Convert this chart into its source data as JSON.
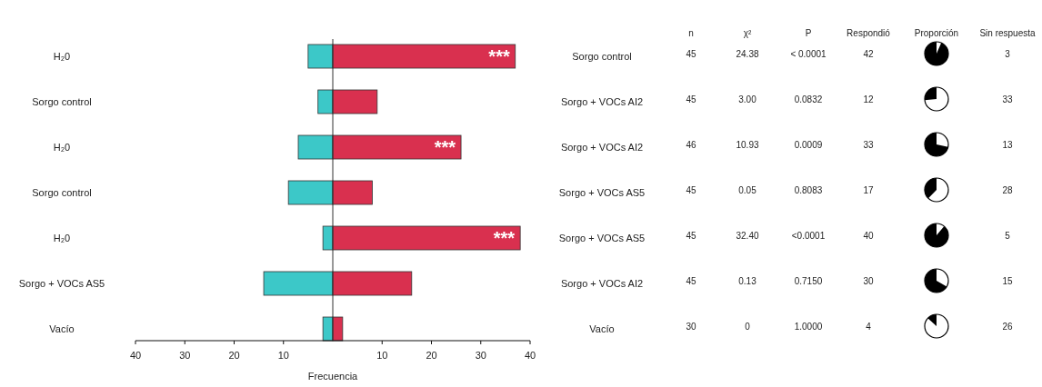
{
  "chart_data": [
    {
      "type": "bar",
      "orientation": "horizontal",
      "stacked": true,
      "xlabel": "Frecuencia",
      "categories": [
        "H₂0",
        "Sorgo control",
        "H₂0",
        "Sorgo control",
        "H₂0",
        "Sorgo + VOCs AS5",
        "Vacío"
      ],
      "series": [
        {
          "color": "#3cc8c8",
          "values": [
            -5,
            -3,
            -7,
            -9,
            -2,
            -14,
            -2
          ]
        },
        {
          "color": "#d9304f",
          "values": [
            37,
            9,
            26,
            8,
            38,
            16,
            2
          ],
          "value_labels": [
            "***",
            null,
            "***",
            null,
            "***",
            null,
            null
          ]
        }
      ],
      "xlim": [
        -40,
        40
      ],
      "xticks": [
        {
          "value": -40,
          "label": "40"
        },
        {
          "value": -30,
          "label": "30"
        },
        {
          "value": -20,
          "label": "20"
        },
        {
          "value": -10,
          "label": "10"
        },
        10,
        20,
        30,
        40
      ]
    },
    {
      "type": "other",
      "categories": [
        null,
        "n",
        "χ²",
        "P",
        "Respondió",
        "Proporción",
        "Sin respuesta"
      ],
      "y_categories": [
        "Sorgo control",
        "Sorgo + VOCs AI2",
        "Sorgo + VOCs AI2",
        "Sorgo + VOCs AS5",
        "Sorgo + VOCs AS5",
        "Sorgo + VOCs AI2",
        "Vacío"
      ],
      "cell_labels": [
        [
          "45",
          "24.38",
          "< 0.0001",
          "42",
          null,
          "3"
        ],
        [
          "45",
          "3.00",
          "0.0832",
          "12",
          null,
          "33"
        ],
        [
          "46",
          "10.93",
          "0.0009",
          "33",
          null,
          "13"
        ],
        [
          "45",
          "0.05",
          "0.8083",
          "17",
          null,
          "28"
        ],
        [
          "45",
          "32.40",
          "<0.0001",
          "40",
          null,
          "5"
        ],
        [
          "45",
          "0.13",
          "0.7150",
          "30",
          null,
          "15"
        ],
        [
          "30",
          "0",
          "1.0000",
          "4",
          null,
          "26"
        ]
      ]
    }
  ]
}
